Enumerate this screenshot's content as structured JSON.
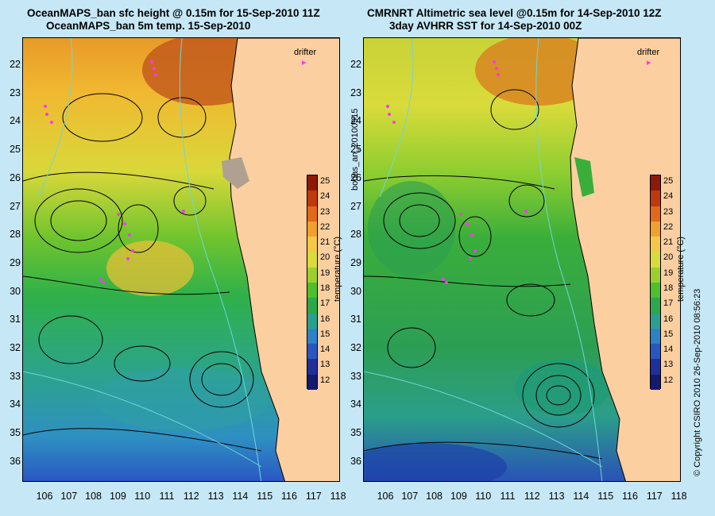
{
  "left_panel": {
    "title_line1": "OceanMAPS_ban sfc height @ 0.15m for 15-Sep-2010 11Z",
    "title_line2": "OceanMAPS_ban 5m temp. 15-Sep-2010",
    "drifter_label": "drifter"
  },
  "right_panel": {
    "title_line1": "CMRNRT Altimetric sea level  @0.15m  for 14-Sep-2010 12Z",
    "title_line2": "3day AVHRR SST for 14-Sep-2010 00Z",
    "drifter_label": "drifter"
  },
  "latitude_labels": [
    "22",
    "23",
    "24",
    "25",
    "26",
    "27",
    "28",
    "29",
    "30",
    "31",
    "32",
    "33",
    "34",
    "35",
    "36"
  ],
  "longitude_labels": [
    "106",
    "107",
    "108",
    "109",
    "110",
    "111",
    "112",
    "113",
    "114",
    "115",
    "116",
    "117",
    "118"
  ],
  "colorbar": {
    "unit_label": "temperature (°C)",
    "ticks": [
      "25",
      "24",
      "23",
      "22",
      "21",
      "20",
      "19",
      "18",
      "17",
      "16",
      "15",
      "14",
      "13",
      "12"
    ],
    "colors": [
      "#8b1a0a",
      "#c0390c",
      "#e0691b",
      "#f0a02c",
      "#f4c846",
      "#d9db3a",
      "#9ccf2e",
      "#4fbf2c",
      "#2ca84a",
      "#2a9f8f",
      "#2d82c6",
      "#2a56c0",
      "#20309a",
      "#141a6e"
    ]
  },
  "side_text": {
    "run_id": "bodas_an_20100915",
    "copyright": "© Copyright CSIRO 2010   26-Sep-2010 08:56:23"
  },
  "colors": {
    "background": "#c6e8f6",
    "land": "#fbcfa0",
    "drifter": "#ff33ff",
    "contour": "#000000",
    "bathymetry": "#6fd6d6"
  }
}
